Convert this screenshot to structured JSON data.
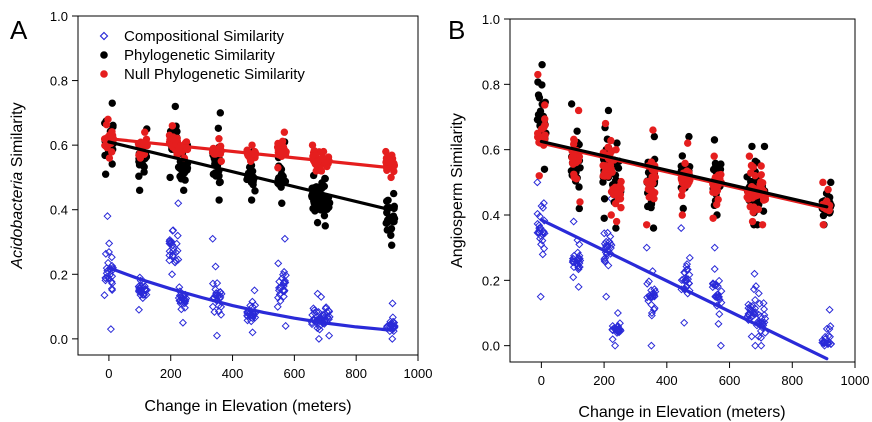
{
  "chart_data": [
    {
      "type": "scatter",
      "panel_label": "A",
      "xlabel": "Change in Elevation (meters)",
      "ylabel_italic": "Acidobacteria",
      "ylabel_rest": " Similarity",
      "xlim": [
        -100,
        1000
      ],
      "ylim": [
        -0.05,
        1.0
      ],
      "xticks": [
        0,
        200,
        400,
        600,
        800,
        1000
      ],
      "yticks": [
        0.0,
        0.2,
        0.4,
        0.6,
        0.8,
        1.0
      ],
      "legend_position": "top-left",
      "series": [
        {
          "name": "Compositional Similarity",
          "marker": "diamond-open",
          "color": "#2a2ad8",
          "groups": [
            {
              "x": 0,
              "min": 0.03,
              "max": 0.38,
              "center": 0.2
            },
            {
              "x": 110,
              "min": 0.09,
              "max": 0.19,
              "center": 0.15
            },
            {
              "x": 210,
              "min": 0.2,
              "max": 0.42,
              "center": 0.28
            },
            {
              "x": 240,
              "min": 0.05,
              "max": 0.16,
              "center": 0.12
            },
            {
              "x": 350,
              "min": 0.01,
              "max": 0.31,
              "center": 0.14
            },
            {
              "x": 460,
              "min": 0.02,
              "max": 0.15,
              "center": 0.08
            },
            {
              "x": 560,
              "min": 0.04,
              "max": 0.31,
              "center": 0.15
            },
            {
              "x": 670,
              "min": 0.0,
              "max": 0.14,
              "center": 0.06
            },
            {
              "x": 700,
              "min": 0.01,
              "max": 0.13,
              "center": 0.06
            },
            {
              "x": 910,
              "min": 0.0,
              "max": 0.11,
              "center": 0.04
            }
          ],
          "fit": [
            [
              0,
              0.22
            ],
            [
              100,
              0.185
            ],
            [
              200,
              0.155
            ],
            [
              300,
              0.128
            ],
            [
              400,
              0.103
            ],
            [
              500,
              0.082
            ],
            [
              600,
              0.064
            ],
            [
              700,
              0.049
            ],
            [
              800,
              0.037
            ],
            [
              910,
              0.027
            ]
          ]
        },
        {
          "name": "Phylogenetic Similarity",
          "marker": "circle-filled",
          "color": "#000000",
          "groups": [
            {
              "x": 0,
              "min": 0.51,
              "max": 0.73,
              "center": 0.61
            },
            {
              "x": 110,
              "min": 0.46,
              "max": 0.65,
              "center": 0.56
            },
            {
              "x": 210,
              "min": 0.5,
              "max": 0.72,
              "center": 0.62
            },
            {
              "x": 240,
              "min": 0.46,
              "max": 0.6,
              "center": 0.53
            },
            {
              "x": 350,
              "min": 0.43,
              "max": 0.7,
              "center": 0.54
            },
            {
              "x": 460,
              "min": 0.43,
              "max": 0.58,
              "center": 0.5
            },
            {
              "x": 560,
              "min": 0.42,
              "max": 0.61,
              "center": 0.49
            },
            {
              "x": 670,
              "min": 0.36,
              "max": 0.57,
              "center": 0.44
            },
            {
              "x": 700,
              "min": 0.35,
              "max": 0.55,
              "center": 0.42
            },
            {
              "x": 910,
              "min": 0.29,
              "max": 0.45,
              "center": 0.37
            }
          ],
          "fit": [
            [
              0,
              0.61
            ],
            [
              910,
              0.4
            ]
          ]
        },
        {
          "name": "Null Phylogenetic Similarity",
          "marker": "circle-filled",
          "color": "#e51e1e",
          "groups": [
            {
              "x": 0,
              "min": 0.56,
              "max": 0.68,
              "center": 0.62
            },
            {
              "x": 110,
              "min": 0.56,
              "max": 0.64,
              "center": 0.6
            },
            {
              "x": 210,
              "min": 0.57,
              "max": 0.66,
              "center": 0.61
            },
            {
              "x": 240,
              "min": 0.56,
              "max": 0.61,
              "center": 0.59
            },
            {
              "x": 350,
              "min": 0.55,
              "max": 0.62,
              "center": 0.58
            },
            {
              "x": 460,
              "min": 0.55,
              "max": 0.6,
              "center": 0.57
            },
            {
              "x": 560,
              "min": 0.53,
              "max": 0.64,
              "center": 0.58
            },
            {
              "x": 670,
              "min": 0.52,
              "max": 0.6,
              "center": 0.55
            },
            {
              "x": 700,
              "min": 0.52,
              "max": 0.58,
              "center": 0.55
            },
            {
              "x": 910,
              "min": 0.5,
              "max": 0.58,
              "center": 0.54
            }
          ],
          "fit": [
            [
              0,
              0.62
            ],
            [
              910,
              0.53
            ]
          ]
        }
      ]
    },
    {
      "type": "scatter",
      "panel_label": "B",
      "xlabel": "Change in Elevation (meters)",
      "ylabel_italic": "",
      "ylabel_rest": "Angiosperm Similarity",
      "xlim": [
        -100,
        1000
      ],
      "ylim": [
        -0.05,
        1.0
      ],
      "xticks": [
        0,
        200,
        400,
        600,
        800,
        1000
      ],
      "yticks": [
        0.0,
        0.2,
        0.4,
        0.6,
        0.8,
        1.0
      ],
      "series": [
        {
          "name": "Compositional Similarity",
          "marker": "diamond-open",
          "color": "#2a2ad8",
          "groups": [
            {
              "x": 0,
              "min": 0.15,
              "max": 0.5,
              "center": 0.35
            },
            {
              "x": 110,
              "min": 0.18,
              "max": 0.38,
              "center": 0.26
            },
            {
              "x": 210,
              "min": 0.15,
              "max": 0.45,
              "center": 0.3
            },
            {
              "x": 240,
              "min": 0.0,
              "max": 0.1,
              "center": 0.05
            },
            {
              "x": 350,
              "min": 0.0,
              "max": 0.3,
              "center": 0.15
            },
            {
              "x": 460,
              "min": 0.07,
              "max": 0.36,
              "center": 0.2
            },
            {
              "x": 560,
              "min": 0.0,
              "max": 0.3,
              "center": 0.15
            },
            {
              "x": 670,
              "min": 0.0,
              "max": 0.22,
              "center": 0.1
            },
            {
              "x": 700,
              "min": 0.0,
              "max": 0.16,
              "center": 0.07
            },
            {
              "x": 910,
              "min": 0.0,
              "max": 0.11,
              "center": 0.01
            }
          ],
          "fit": [
            [
              0,
              0.385
            ],
            [
              910,
              -0.04
            ]
          ]
        },
        {
          "name": "Phylogenetic Similarity",
          "marker": "circle-filled",
          "color": "#000000",
          "groups": [
            {
              "x": 0,
              "min": 0.54,
              "max": 0.86,
              "center": 0.66
            },
            {
              "x": 110,
              "min": 0.42,
              "max": 0.74,
              "center": 0.57
            },
            {
              "x": 210,
              "min": 0.39,
              "max": 0.72,
              "center": 0.56
            },
            {
              "x": 240,
              "min": 0.36,
              "max": 0.62,
              "center": 0.49
            },
            {
              "x": 350,
              "min": 0.36,
              "max": 0.64,
              "center": 0.5
            },
            {
              "x": 460,
              "min": 0.42,
              "max": 0.64,
              "center": 0.52
            },
            {
              "x": 560,
              "min": 0.4,
              "max": 0.63,
              "center": 0.5
            },
            {
              "x": 670,
              "min": 0.37,
              "max": 0.61,
              "center": 0.48
            },
            {
              "x": 700,
              "min": 0.37,
              "max": 0.61,
              "center": 0.47
            },
            {
              "x": 910,
              "min": 0.37,
              "max": 0.5,
              "center": 0.43
            }
          ],
          "fit": [
            [
              0,
              0.625
            ],
            [
              910,
              0.425
            ]
          ]
        },
        {
          "name": "Null Phylogenetic Similarity",
          "marker": "circle-filled",
          "color": "#e51e1e",
          "groups": [
            {
              "x": 0,
              "min": 0.52,
              "max": 0.83,
              "center": 0.64
            },
            {
              "x": 110,
              "min": 0.44,
              "max": 0.72,
              "center": 0.57
            },
            {
              "x": 210,
              "min": 0.4,
              "max": 0.68,
              "center": 0.55
            },
            {
              "x": 240,
              "min": 0.38,
              "max": 0.6,
              "center": 0.48
            },
            {
              "x": 350,
              "min": 0.37,
              "max": 0.66,
              "center": 0.5
            },
            {
              "x": 460,
              "min": 0.4,
              "max": 0.62,
              "center": 0.51
            },
            {
              "x": 560,
              "min": 0.39,
              "max": 0.58,
              "center": 0.49
            },
            {
              "x": 670,
              "min": 0.38,
              "max": 0.58,
              "center": 0.47
            },
            {
              "x": 700,
              "min": 0.37,
              "max": 0.55,
              "center": 0.46
            },
            {
              "x": 910,
              "min": 0.37,
              "max": 0.5,
              "center": 0.43
            }
          ],
          "fit": [
            [
              0,
              0.62
            ],
            [
              910,
              0.42
            ]
          ]
        }
      ]
    }
  ]
}
